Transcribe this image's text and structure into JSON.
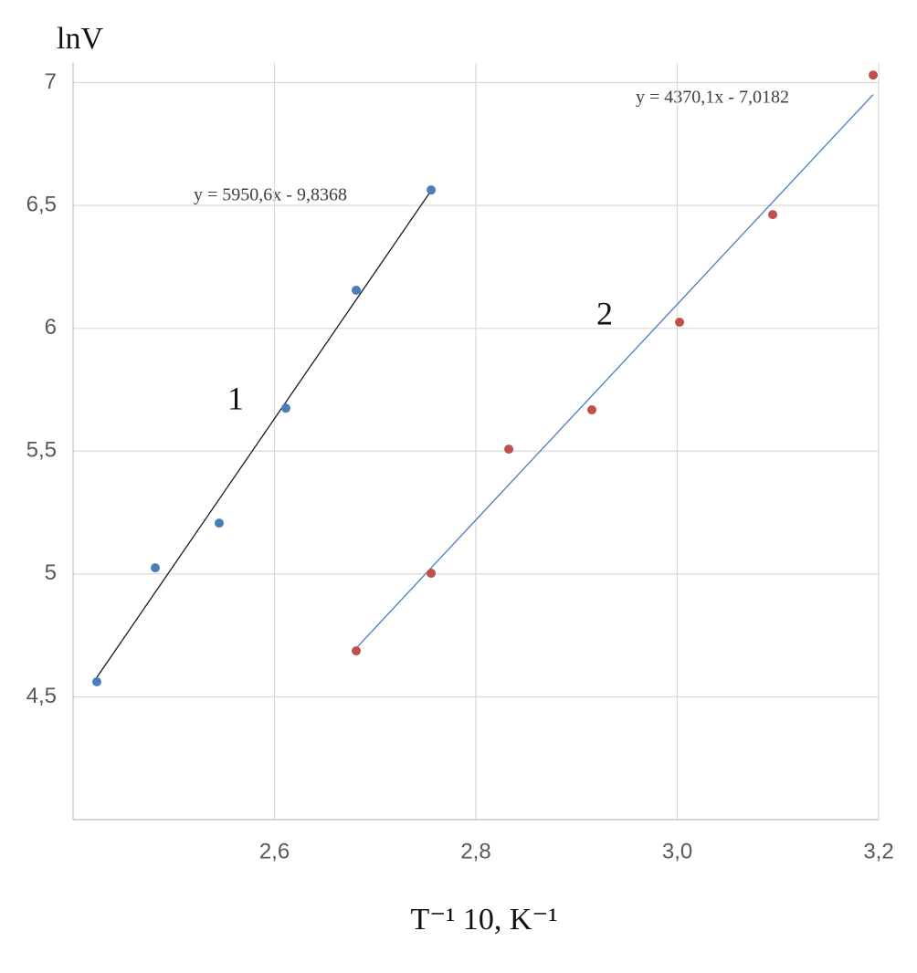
{
  "chart_data": {
    "type": "scatter",
    "y_label": "lnV",
    "x_label": "T⁻¹ 10, K⁻¹",
    "xlim": [
      2.4,
      3.2
    ],
    "xticks": [
      {
        "value": 2.6,
        "label": "2,6"
      },
      {
        "value": 2.8,
        "label": "2,8"
      },
      {
        "value": 3.0,
        "label": "3,0"
      },
      {
        "value": 3.2,
        "label": "3,2"
      }
    ],
    "ylim": [
      4,
      7.08
    ],
    "yticks": [
      {
        "value": 4.5,
        "label": "4,5"
      },
      5,
      {
        "value": 5.5,
        "label": "5,5"
      },
      6,
      {
        "value": 6.5,
        "label": "6,5"
      },
      7
    ],
    "grid": true,
    "series": [
      {
        "name": "1",
        "color": "#4a7ebb",
        "line_color": "#1a1a1a",
        "trendline_label": "y = 5950,6x - 9,8368",
        "x": [
          2.4236,
          2.4816,
          2.5451,
          2.6113,
          2.6812,
          2.7556
        ],
        "values": [
          4.561,
          5.025,
          5.207,
          5.675,
          6.155,
          6.563
        ]
      },
      {
        "name": "2",
        "color": "#c0504d",
        "line_color": "#4a7ebb",
        "trendline_label": "y = 4370,1x - 7,0182",
        "x": [
          2.6812,
          2.7556,
          2.8327,
          2.9152,
          3.0023,
          3.0948,
          3.1946
        ],
        "values": [
          4.687,
          5.003,
          5.508,
          5.668,
          6.025,
          6.463,
          7.031
        ]
      }
    ]
  }
}
